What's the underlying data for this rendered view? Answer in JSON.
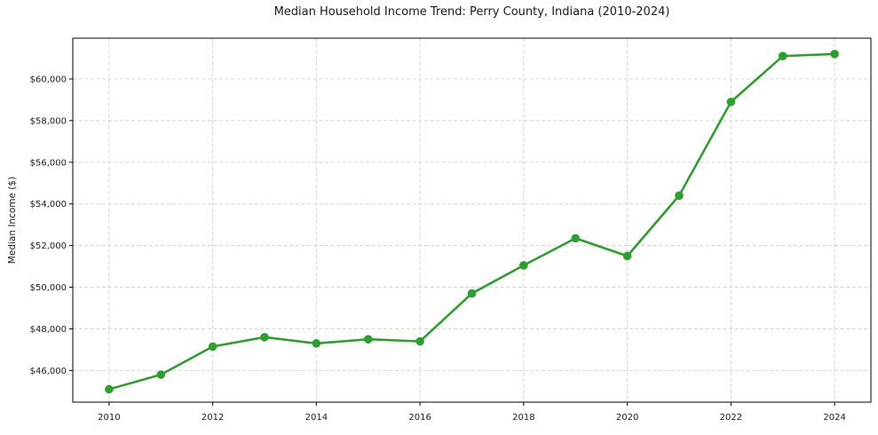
{
  "chart_data": {
    "type": "line",
    "title": "Median Household Income Trend: Perry County, Indiana (2010-2024)",
    "xlabel": "",
    "ylabel": "Median Income ($)",
    "x": [
      2010,
      2011,
      2012,
      2013,
      2014,
      2015,
      2016,
      2017,
      2018,
      2019,
      2020,
      2021,
      2022,
      2023,
      2024
    ],
    "series": [
      {
        "name": "Median Household Income",
        "values": [
          45100,
          45800,
          47150,
          47600,
          47300,
          47500,
          47400,
          49700,
          51050,
          52350,
          51500,
          54400,
          58900,
          61100,
          61200
        ],
        "color": "#2ca02c",
        "marker": "circle"
      }
    ],
    "xlim": [
      2009.3,
      2024.7
    ],
    "ylim": [
      44480,
      61960
    ],
    "xticks": {
      "values": [
        2010,
        2012,
        2014,
        2016,
        2018,
        2020,
        2022,
        2024
      ],
      "labels": [
        "2010",
        "2012",
        "2014",
        "2016",
        "2018",
        "2020",
        "2022",
        "2024"
      ]
    },
    "yticks": {
      "values": [
        46000,
        48000,
        50000,
        52000,
        54000,
        56000,
        58000,
        60000
      ],
      "labels": [
        "$46,000",
        "$48,000",
        "$50,000",
        "$52,000",
        "$54,000",
        "$56,000",
        "$58,000",
        "$60,000"
      ]
    },
    "grid": true,
    "grid_linestyle": "dashed",
    "legend": "none",
    "colors": {
      "line": "#2ca02c",
      "grid": "#cfcfcf",
      "axis": "#000000",
      "text": "#1a1a1a",
      "background": "#ffffff"
    }
  }
}
